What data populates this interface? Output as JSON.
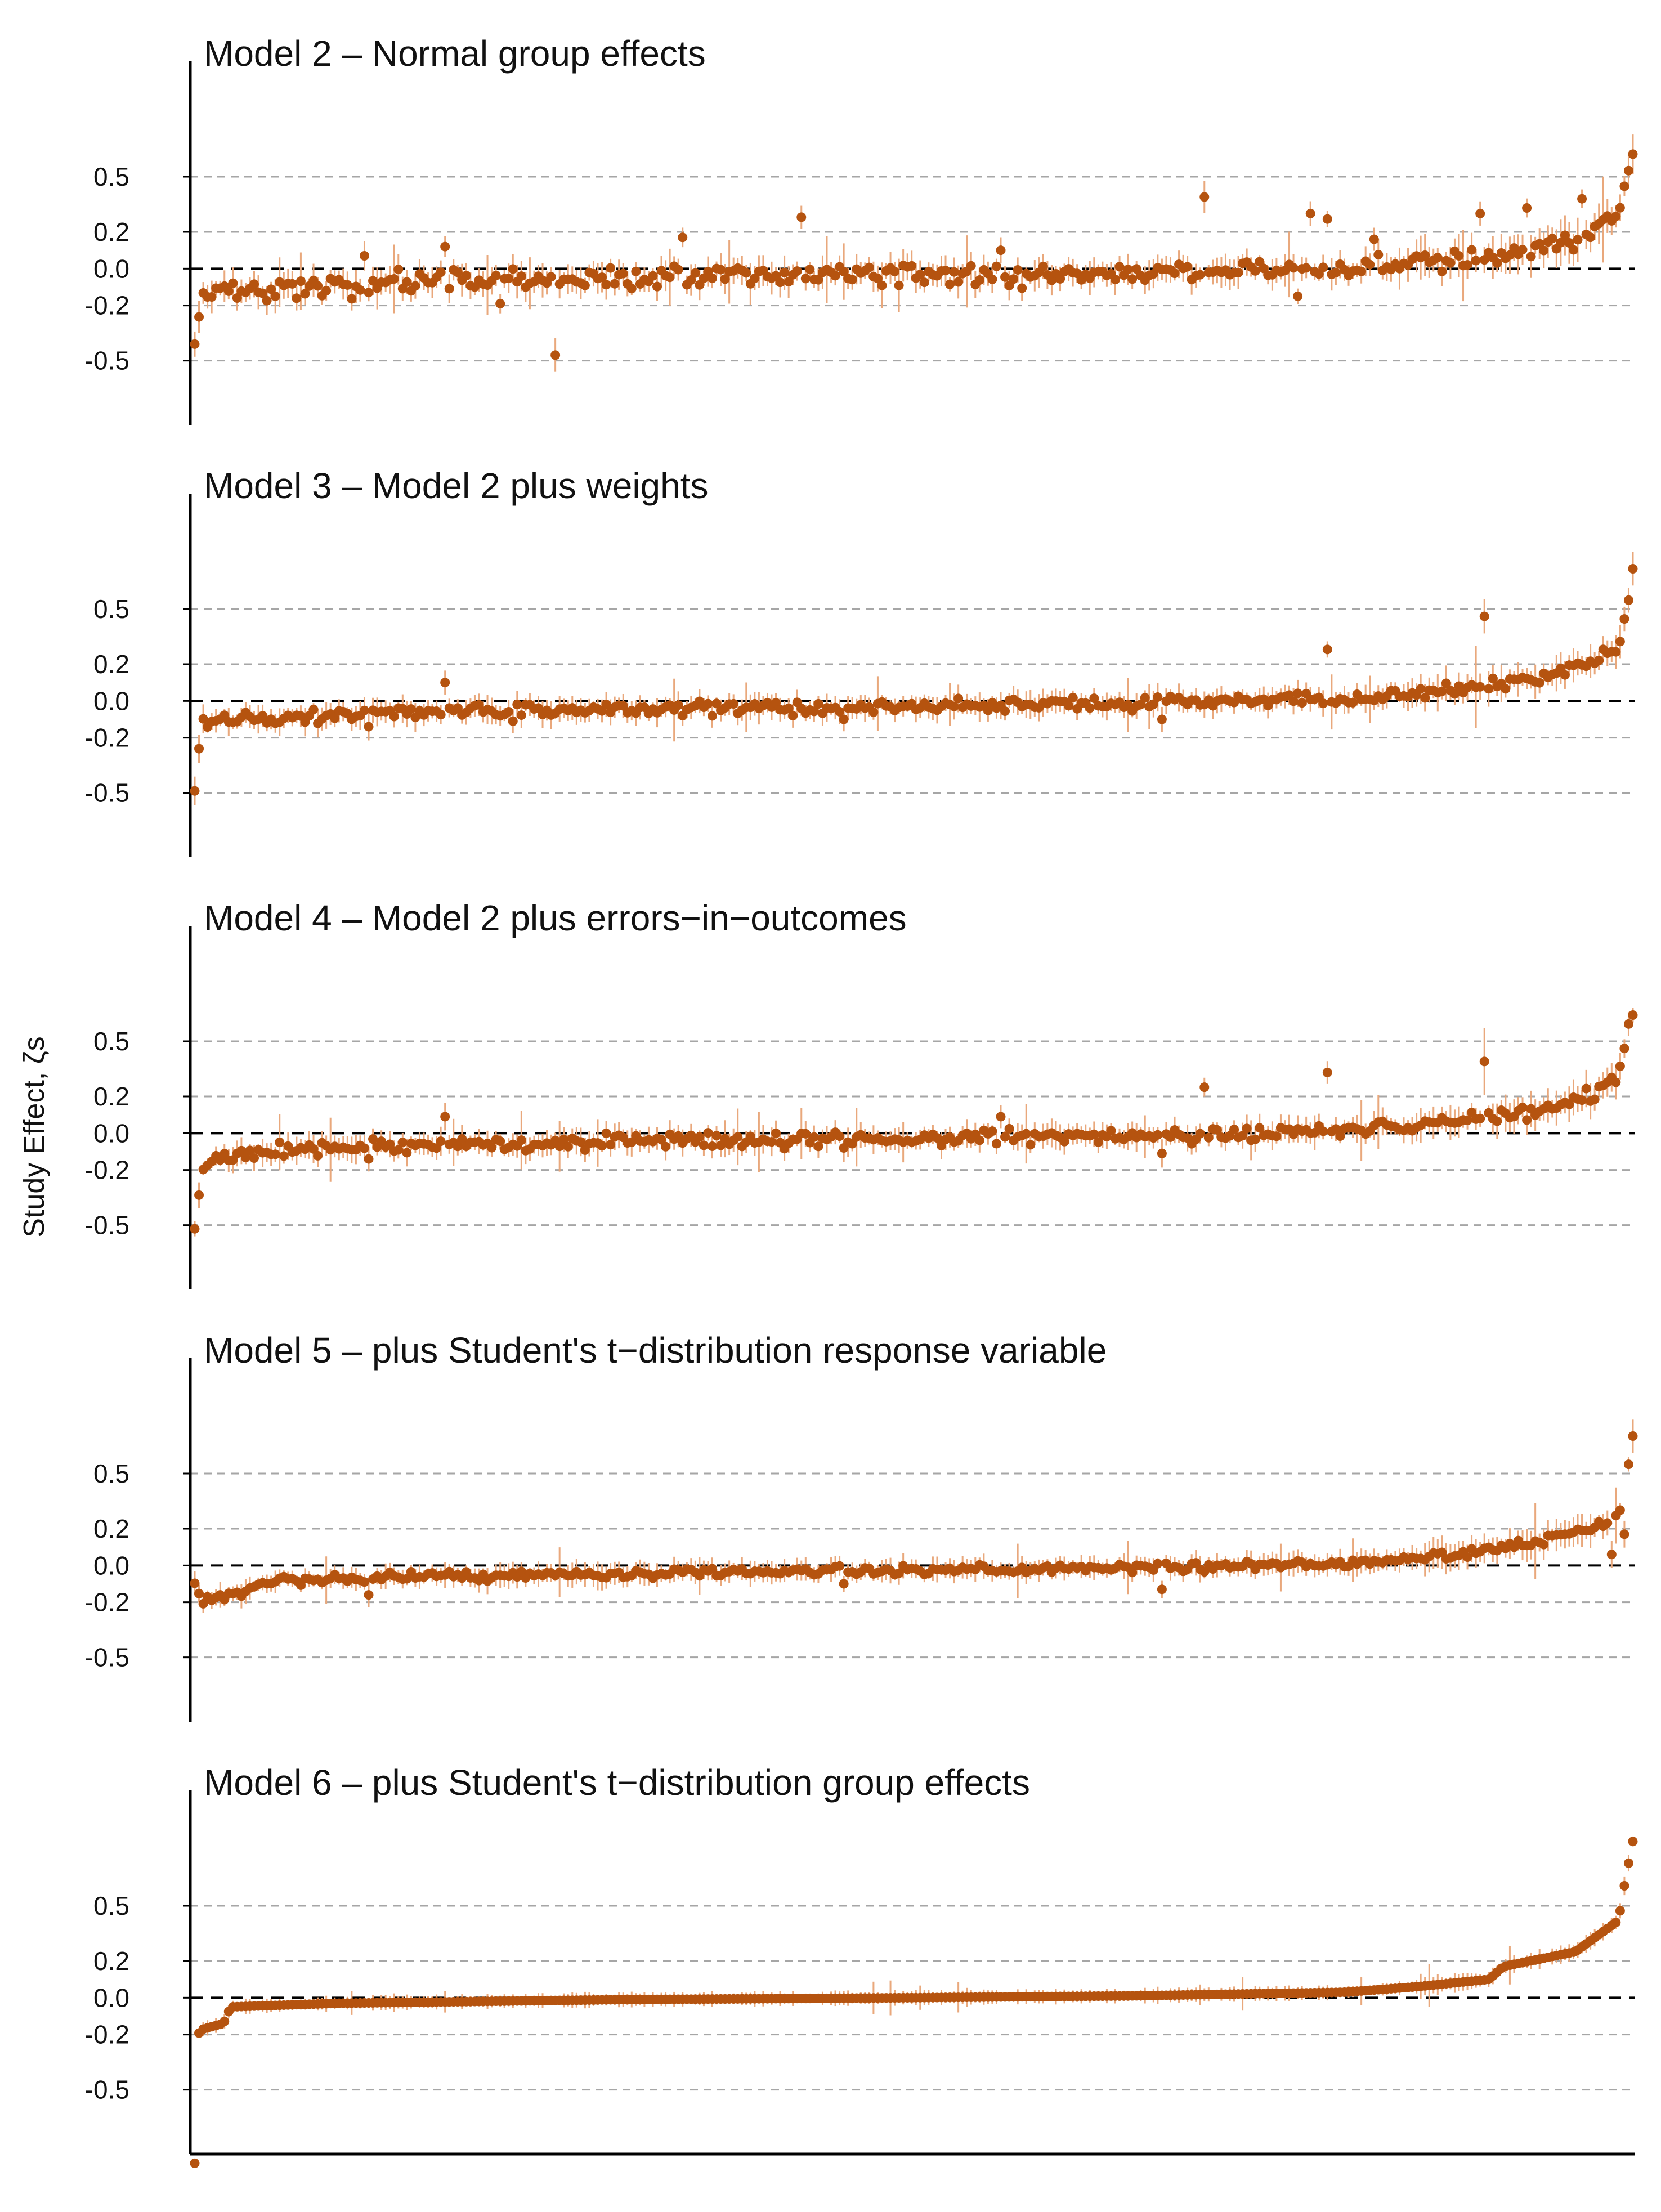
{
  "figure": {
    "ylabel": "Study Effect, ζs",
    "colors": {
      "point": "#b5530f",
      "interval": "#e9a87c",
      "zero_line": "#000000",
      "grid": "#a6a6a6",
      "axis": "#000000"
    }
  },
  "chart_data": [
    {
      "type": "scatter",
      "title": "Model 2 – Normal group effects",
      "ylabel": "Study Effect, ζs",
      "xlabel": "",
      "yticks": [
        -0.5,
        -0.2,
        0.0,
        0.2,
        0.5
      ],
      "ytick_labels": [
        "-0.5",
        "-0.2",
        "0.0",
        "0.2",
        "0.5"
      ],
      "ylim": [
        -0.85,
        0.95
      ],
      "grid": "dashed gray lines at ±0.2 and ±0.5, dashed black line at 0",
      "n_studies": 340,
      "sorted_by": "Model 6 estimate",
      "profile_x": [
        0,
        0.005,
        0.02,
        0.15,
        0.3,
        0.5,
        0.7,
        0.8,
        0.88,
        0.93,
        0.97,
        0.99,
        1.0
      ],
      "profile_y": [
        -0.42,
        -0.17,
        -0.13,
        -0.07,
        -0.05,
        -0.03,
        -0.01,
        0.0,
        0.05,
        0.1,
        0.18,
        0.3,
        0.62
      ],
      "scatter_sd": 0.03,
      "interval_halfwidth": 0.065,
      "outliers": [
        {
          "x": 0.055,
          "y": -0.15
        },
        {
          "x": 0.09,
          "y": -0.12
        },
        {
          "x": 0.117,
          "y": 0.07
        },
        {
          "x": 0.175,
          "y": 0.12
        },
        {
          "x": 0.212,
          "y": -0.19
        },
        {
          "x": 0.252,
          "y": -0.47
        },
        {
          "x": 0.34,
          "y": 0.17
        },
        {
          "x": 0.422,
          "y": 0.28
        },
        {
          "x": 0.56,
          "y": 0.1
        },
        {
          "x": 0.701,
          "y": 0.39
        },
        {
          "x": 0.766,
          "y": -0.15
        },
        {
          "x": 0.777,
          "y": 0.3
        },
        {
          "x": 0.787,
          "y": 0.27
        },
        {
          "x": 0.82,
          "y": 0.16
        },
        {
          "x": 0.895,
          "y": 0.3
        },
        {
          "x": 0.925,
          "y": 0.33
        },
        {
          "x": 0.965,
          "y": 0.38
        }
      ]
    },
    {
      "type": "scatter",
      "title": "Model 3 – Model 2 plus weights",
      "ylabel": "",
      "xlabel": "",
      "yticks": [
        -0.5,
        -0.2,
        0.0,
        0.2,
        0.5
      ],
      "ytick_labels": [
        "-0.5",
        "-0.2",
        "0.0",
        "0.2",
        "0.5"
      ],
      "ylim": [
        -0.85,
        0.95
      ],
      "grid": "dashed gray lines at ±0.2 and ±0.5, dashed black line at 0",
      "n_studies": 340,
      "sorted_by": "Model 6 estimate",
      "profile_x": [
        0,
        0.005,
        0.02,
        0.15,
        0.3,
        0.5,
        0.7,
        0.8,
        0.88,
        0.93,
        0.97,
        0.99,
        1.0
      ],
      "profile_y": [
        -0.5,
        -0.13,
        -0.1,
        -0.06,
        -0.045,
        -0.03,
        -0.01,
        0.01,
        0.06,
        0.11,
        0.2,
        0.3,
        0.7
      ],
      "scatter_sd": 0.02,
      "interval_halfwidth": 0.055,
      "outliers": [
        {
          "x": 0.12,
          "y": -0.14
        },
        {
          "x": 0.175,
          "y": 0.1
        },
        {
          "x": 0.22,
          "y": -0.11
        },
        {
          "x": 0.34,
          "y": -0.08
        },
        {
          "x": 0.452,
          "y": -0.1
        },
        {
          "x": 0.673,
          "y": -0.1
        },
        {
          "x": 0.787,
          "y": 0.28
        },
        {
          "x": 0.897,
          "y": 0.46
        }
      ]
    },
    {
      "type": "scatter",
      "title": "Model 4 – Model 2 plus errors−in−outcomes",
      "ylabel": "",
      "xlabel": "",
      "yticks": [
        -0.5,
        -0.2,
        0.0,
        0.2,
        0.5
      ],
      "ytick_labels": [
        "-0.5",
        "-0.2",
        "0.0",
        "0.2",
        "0.5"
      ],
      "ylim": [
        -0.85,
        0.95
      ],
      "grid": "dashed gray lines at ±0.2 and ±0.5, dashed black line at 0",
      "n_studies": 340,
      "sorted_by": "Model 6 estimate",
      "profile_x": [
        0,
        0.005,
        0.02,
        0.15,
        0.3,
        0.5,
        0.7,
        0.8,
        0.88,
        0.93,
        0.97,
        0.99,
        1.0
      ],
      "profile_y": [
        -0.52,
        -0.16,
        -0.12,
        -0.06,
        -0.045,
        -0.03,
        -0.01,
        0.01,
        0.07,
        0.12,
        0.2,
        0.32,
        0.67
      ],
      "scatter_sd": 0.02,
      "interval_halfwidth": 0.055,
      "outliers": [
        {
          "x": 0.12,
          "y": -0.14
        },
        {
          "x": 0.175,
          "y": 0.09
        },
        {
          "x": 0.452,
          "y": -0.08
        },
        {
          "x": 0.56,
          "y": 0.09
        },
        {
          "x": 0.673,
          "y": -0.11
        },
        {
          "x": 0.701,
          "y": 0.25
        },
        {
          "x": 0.787,
          "y": 0.33
        },
        {
          "x": 0.897,
          "y": 0.39
        }
      ]
    },
    {
      "type": "scatter",
      "title": "Model 5 – plus Student's t−distribution response variable",
      "ylabel": "",
      "xlabel": "",
      "yticks": [
        -0.5,
        -0.2,
        0.0,
        0.2,
        0.5
      ],
      "ytick_labels": [
        "-0.5",
        "-0.2",
        "0.0",
        "0.2",
        "0.5"
      ],
      "ylim": [
        -0.85,
        0.95
      ],
      "grid": "dashed gray lines at ±0.2 and ±0.5, dashed black line at 0",
      "n_studies": 340,
      "sorted_by": "Model 6 estimate",
      "profile_x": [
        0,
        0.005,
        0.02,
        0.05,
        0.15,
        0.3,
        0.5,
        0.7,
        0.8,
        0.88,
        0.93,
        0.97,
        0.99,
        1.0
      ],
      "profile_y": [
        -0.1,
        -0.2,
        -0.17,
        -0.09,
        -0.06,
        -0.045,
        -0.025,
        -0.01,
        0.01,
        0.06,
        0.12,
        0.2,
        0.25,
        0.7
      ],
      "scatter_sd": 0.012,
      "interval_halfwidth": 0.05,
      "outliers": [
        {
          "x": 0.12,
          "y": -0.16
        },
        {
          "x": 0.452,
          "y": -0.1
        },
        {
          "x": 0.673,
          "y": -0.13
        },
        {
          "x": 0.985,
          "y": 0.06
        },
        {
          "x": 0.993,
          "y": 0.17
        },
        {
          "x": 0.996,
          "y": 0.55
        }
      ]
    },
    {
      "type": "scatter",
      "title": "Model 6 – plus Student's t−distribution group effects",
      "ylabel": "",
      "xlabel": "",
      "yticks": [
        -0.5,
        -0.2,
        0.0,
        0.2,
        0.5
      ],
      "ytick_labels": [
        "-0.5",
        "-0.2",
        "0.0",
        "0.2",
        "0.5"
      ],
      "ylim": [
        -0.85,
        0.95
      ],
      "grid": "dashed gray lines at ±0.2 and ±0.5, dashed black line at 0",
      "n_studies": 340,
      "sorted_by": "Model 6 estimate",
      "profile_x": [
        0,
        0.003,
        0.006,
        0.02,
        0.025,
        0.1,
        0.3,
        0.5,
        0.65,
        0.8,
        0.85,
        0.9,
        0.91,
        0.96,
        0.99,
        0.995,
        1.0
      ],
      "profile_y": [
        -0.9,
        -0.18,
        -0.17,
        -0.14,
        -0.05,
        -0.03,
        -0.01,
        0.0,
        0.01,
        0.03,
        0.06,
        0.1,
        0.17,
        0.25,
        0.42,
        0.65,
        0.85
      ],
      "scatter_sd": 0.0,
      "interval_halfwidth": 0.03,
      "outliers": []
    }
  ]
}
